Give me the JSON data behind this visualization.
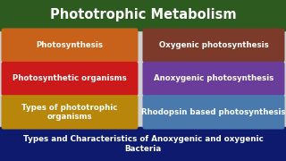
{
  "title": "Phototrophic Metabolism",
  "title_bg": "#2d5a1e",
  "title_color": "#ffffff",
  "footer": "Types and Characteristics of Anoxygenic and oxygenic\nBacteria",
  "footer_bg": "#0d1a6e",
  "footer_color": "#ffffff",
  "bg_color": "#d0d0d0",
  "left_boxes": [
    {
      "text": "Photosynthesis",
      "color": "#c8621a"
    },
    {
      "text": "Photosynthetic organisms",
      "color": "#cc1a1a"
    },
    {
      "text": "Types of phototrophic\norganisms",
      "color": "#b8860b"
    }
  ],
  "right_boxes": [
    {
      "text": "Oxygenic photosynthesis",
      "color": "#7b3a2a"
    },
    {
      "text": "Anoxygenic photosynthesis",
      "color": "#6a3d9a"
    },
    {
      "text": "Rhodopsin based photosynthesis",
      "color": "#4a7aad"
    }
  ],
  "box_text_color": "#ffffff"
}
